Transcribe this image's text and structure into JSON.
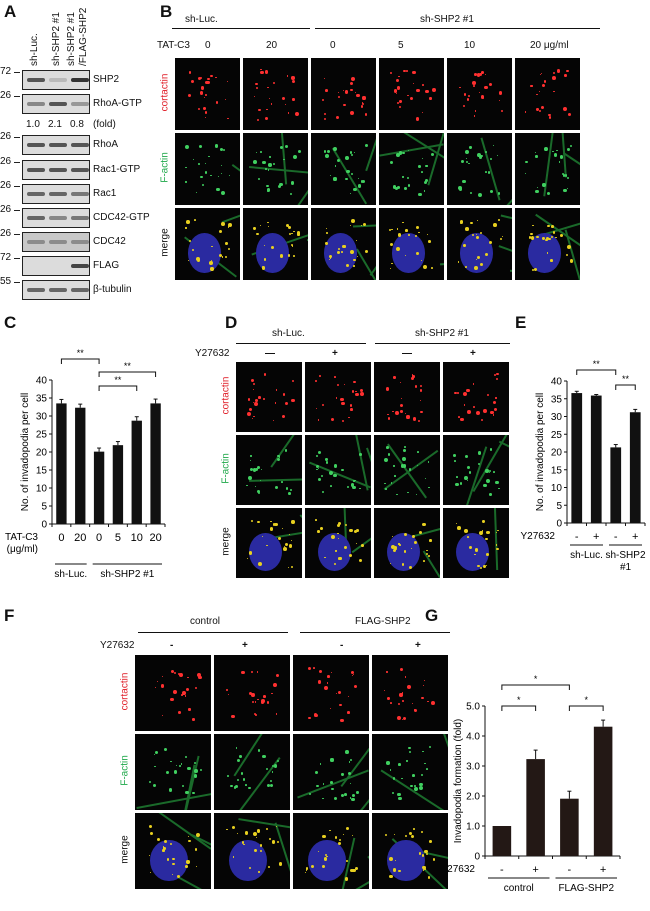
{
  "panels": {
    "a": "A",
    "b": "B",
    "c": "C",
    "d": "D",
    "e": "E",
    "f": "F",
    "g": "G"
  },
  "panel_a": {
    "lanes": [
      "sh-Luc.",
      "sh-SHP2 #1",
      "sh-SHP2 #1",
      "/FLAG-SHP2"
    ],
    "blots": [
      {
        "label": "SHP2",
        "mw": "72",
        "bands": [
          0.8,
          0.2,
          1.0
        ]
      },
      {
        "label": "RhoA-GTP",
        "mw": "26",
        "bands": [
          0.5,
          0.8,
          0.4
        ]
      },
      {
        "label": "RhoA",
        "mw": "26",
        "bands": [
          0.8,
          0.8,
          0.8
        ]
      },
      {
        "label": "Rac1-GTP",
        "mw": "26",
        "bands": [
          0.8,
          0.8,
          0.8
        ]
      },
      {
        "label": "Rac1",
        "mw": "26",
        "bands": [
          0.7,
          0.7,
          0.6
        ]
      },
      {
        "label": "CDC42-GTP",
        "mw": "26",
        "bands": [
          0.7,
          0.5,
          0.6
        ]
      },
      {
        "label": "CDC42",
        "mw": "26",
        "bands": [
          0.4,
          0.4,
          0.4
        ]
      },
      {
        "label": "FLAG",
        "mw": "72",
        "bands": [
          0,
          0,
          0.9
        ]
      },
      {
        "label": "β-tubulin",
        "mw": "55",
        "bands": [
          0.7,
          0.7,
          0.7
        ]
      }
    ],
    "fold_values": [
      "1.0",
      "2.1",
      "0.8"
    ],
    "fold_label": "(fold)"
  },
  "panel_b": {
    "groups": [
      "sh-Luc.",
      "sh-SHP2 #1"
    ],
    "treatment_label": "TAT-C3",
    "doses": [
      "0",
      "20",
      "0",
      "5",
      "10",
      "20 μg/ml"
    ],
    "rows": [
      "cortactin",
      "F-actin",
      "merge"
    ]
  },
  "panel_d": {
    "groups": [
      "sh-Luc.",
      "sh-SHP2 #1"
    ],
    "treatment_label": "Y27632",
    "conditions": [
      "—",
      "+",
      "—",
      "+"
    ],
    "rows": [
      "cortactin",
      "F-actin",
      "merge"
    ]
  },
  "panel_f": {
    "groups": [
      "control",
      "FLAG-SHP2"
    ],
    "treatment_label": "Y27632",
    "conditions": [
      "-",
      "+",
      "-",
      "+"
    ],
    "rows": [
      "cortactin",
      "F-actin",
      "merge"
    ]
  },
  "colors": {
    "cortactin": "#e0202a",
    "F-actin": "#1fa84a",
    "merge": "#111111",
    "bar": "#111111",
    "bar_g": "#231815"
  },
  "chart_data": [
    {
      "id": "C",
      "type": "bar",
      "ylabel": "No. of  invadopodia per cell",
      "ylim": [
        0,
        40
      ],
      "yticks": [
        "0",
        "5",
        "10",
        "15",
        "20",
        "25",
        "30",
        "35",
        "40"
      ],
      "row_label": "TAT-C3",
      "row_label2": "(μg/ml)",
      "categories": [
        "0",
        "20",
        "0",
        "5",
        "10",
        "20"
      ],
      "values": [
        33.5,
        32.3,
        20.1,
        21.9,
        28.7,
        33.5
      ],
      "errors": [
        1.1,
        1.0,
        1.0,
        1.0,
        1.1,
        1.2
      ],
      "groups": [
        {
          "label": "sh-Luc.",
          "span": [
            0,
            1
          ]
        },
        {
          "label": "sh-SHP2 #1",
          "span": [
            2,
            5
          ]
        }
      ],
      "significance": [
        {
          "from": 0,
          "to": 2,
          "label": "**"
        },
        {
          "from": 2,
          "to": 5,
          "label": "**"
        },
        {
          "from": 2,
          "to": 4,
          "label": "**"
        }
      ]
    },
    {
      "id": "E",
      "type": "bar",
      "ylabel": "No. of  invadopodia per cell",
      "ylim": [
        0,
        40
      ],
      "yticks": [
        "0",
        "5",
        "10",
        "15",
        "20",
        "25",
        "30",
        "35",
        "40"
      ],
      "row_label": "Y27632",
      "categories": [
        "-",
        "+",
        "-",
        "+"
      ],
      "values": [
        36.6,
        35.9,
        21.3,
        31.2
      ],
      "errors": [
        0.5,
        0.3,
        0.8,
        0.8
      ],
      "groups": [
        {
          "label": "sh-Luc.",
          "span": [
            0,
            1
          ]
        },
        {
          "label": "sh-SHP2",
          "label2": "#1",
          "span": [
            2,
            3
          ]
        }
      ],
      "significance": [
        {
          "from": 0,
          "to": 2,
          "label": "**"
        },
        {
          "from": 2,
          "to": 3,
          "label": "**"
        }
      ]
    },
    {
      "id": "G",
      "type": "bar",
      "ylabel": "Invadopodia formation (fold)",
      "ylim": [
        0,
        5
      ],
      "yticks": [
        "0",
        "1.0",
        "2.0",
        "3.0",
        "4.0",
        "5.0"
      ],
      "row_label": "Y27632",
      "categories": [
        "-",
        "+",
        "-",
        "+"
      ],
      "values": [
        1.0,
        3.23,
        1.91,
        4.31
      ],
      "errors": [
        0,
        0.3,
        0.25,
        0.22
      ],
      "groups": [
        {
          "label": "control",
          "span": [
            0,
            1
          ]
        },
        {
          "label": "FLAG-SHP2",
          "span": [
            2,
            3
          ]
        }
      ],
      "significance": [
        {
          "from": 0,
          "to": 2,
          "label": "*"
        },
        {
          "from": 0,
          "to": 1,
          "label": "*"
        },
        {
          "from": 2,
          "to": 3,
          "label": "*"
        }
      ]
    }
  ]
}
